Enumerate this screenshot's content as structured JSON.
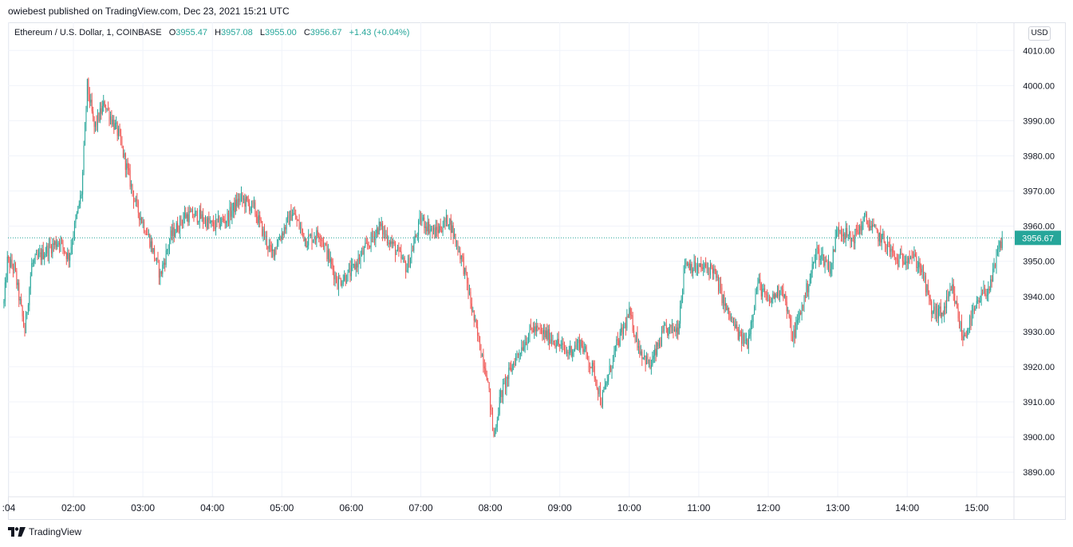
{
  "publish_line": "owiebest published on TradingView.com, Dec 23, 2021 15:21 UTC",
  "legend": {
    "symbol": "Ethereum / U.S. Dollar, 1, COINBASE",
    "open_label": "O",
    "open": "3955.47",
    "high_label": "H",
    "high": "3957.08",
    "low_label": "L",
    "low": "3955.00",
    "close_label": "C",
    "close": "3956.67",
    "change": "+1.43 (+0.04%)"
  },
  "currency": "USD",
  "footer_brand": "TradingView",
  "colors": {
    "up": "#26a69a",
    "down": "#ef5350",
    "grid": "#f0f3fa",
    "text": "#131722",
    "price_tag": "#26a69a"
  },
  "chart_data": {
    "type": "candlestick",
    "ylim": [
      3883,
      4018
    ],
    "last_price": 3956.67,
    "last_price_label": "3956.67",
    "y_ticks": [
      3890,
      3900,
      3910,
      3920,
      3930,
      3940,
      3950,
      3960,
      3970,
      3980,
      3990,
      4000,
      4010
    ],
    "y_tick_labels": [
      "3890.00",
      "3900.00",
      "3910.00",
      "3920.00",
      "3930.00",
      "3940.00",
      "3950.00",
      "3960.00",
      "3970.00",
      "3980.00",
      "3990.00",
      "4000.00",
      "4010.00"
    ],
    "x_ticks": [
      1.07,
      2,
      3,
      4,
      5,
      6,
      7,
      8,
      9,
      10,
      11,
      12,
      13,
      14,
      15
    ],
    "x_tick_labels": [
      ":04",
      "02:00",
      "03:00",
      "04:00",
      "05:00",
      "06:00",
      "07:00",
      "08:00",
      "09:00",
      "10:00",
      "11:00",
      "12:00",
      "13:00",
      "14:00",
      "15:00"
    ],
    "xlim": [
      1.0,
      15.5
    ],
    "close_anchors": [
      [
        1.0,
        3938
      ],
      [
        1.05,
        3950
      ],
      [
        1.15,
        3948
      ],
      [
        1.3,
        3930
      ],
      [
        1.4,
        3949
      ],
      [
        1.6,
        3953
      ],
      [
        1.8,
        3956
      ],
      [
        1.93,
        3951
      ],
      [
        2.12,
        3970
      ],
      [
        2.2,
        4000
      ],
      [
        2.3,
        3988
      ],
      [
        2.45,
        3995
      ],
      [
        2.65,
        3986
      ],
      [
        2.9,
        3966
      ],
      [
        3.1,
        3956
      ],
      [
        3.25,
        3946
      ],
      [
        3.4,
        3957
      ],
      [
        3.6,
        3963
      ],
      [
        3.8,
        3963
      ],
      [
        4.0,
        3960
      ],
      [
        4.2,
        3962
      ],
      [
        4.4,
        3968
      ],
      [
        4.6,
        3965
      ],
      [
        4.85,
        3952
      ],
      [
        5.15,
        3964
      ],
      [
        5.35,
        3956
      ],
      [
        5.55,
        3958
      ],
      [
        5.8,
        3944
      ],
      [
        6.0,
        3947
      ],
      [
        6.25,
        3955
      ],
      [
        6.4,
        3960
      ],
      [
        6.55,
        3956
      ],
      [
        6.8,
        3948
      ],
      [
        7.0,
        3962
      ],
      [
        7.2,
        3958
      ],
      [
        7.4,
        3962
      ],
      [
        7.6,
        3950
      ],
      [
        7.8,
        3930
      ],
      [
        7.95,
        3918
      ],
      [
        8.05,
        3900
      ],
      [
        8.15,
        3912
      ],
      [
        8.35,
        3922
      ],
      [
        8.6,
        3931
      ],
      [
        8.9,
        3928
      ],
      [
        9.1,
        3924
      ],
      [
        9.3,
        3927
      ],
      [
        9.5,
        3918
      ],
      [
        9.6,
        3910
      ],
      [
        9.8,
        3925
      ],
      [
        10.0,
        3935
      ],
      [
        10.15,
        3925
      ],
      [
        10.3,
        3920
      ],
      [
        10.5,
        3930
      ],
      [
        10.7,
        3931
      ],
      [
        10.8,
        3950
      ],
      [
        10.95,
        3948
      ],
      [
        11.2,
        3948
      ],
      [
        11.4,
        3936
      ],
      [
        11.6,
        3928
      ],
      [
        11.7,
        3927
      ],
      [
        11.85,
        3944
      ],
      [
        12.0,
        3938
      ],
      [
        12.2,
        3943
      ],
      [
        12.35,
        3928
      ],
      [
        12.5,
        3938
      ],
      [
        12.7,
        3953
      ],
      [
        12.9,
        3948
      ],
      [
        13.0,
        3960
      ],
      [
        13.2,
        3956
      ],
      [
        13.4,
        3962
      ],
      [
        13.55,
        3958
      ],
      [
        13.7,
        3955
      ],
      [
        13.85,
        3950
      ],
      [
        14.05,
        3952
      ],
      [
        14.2,
        3948
      ],
      [
        14.35,
        3936
      ],
      [
        14.5,
        3935
      ],
      [
        14.65,
        3942
      ],
      [
        14.8,
        3928
      ],
      [
        14.95,
        3935
      ],
      [
        15.1,
        3941
      ],
      [
        15.2,
        3943
      ],
      [
        15.3,
        3952
      ],
      [
        15.37,
        3956.67
      ]
    ]
  }
}
